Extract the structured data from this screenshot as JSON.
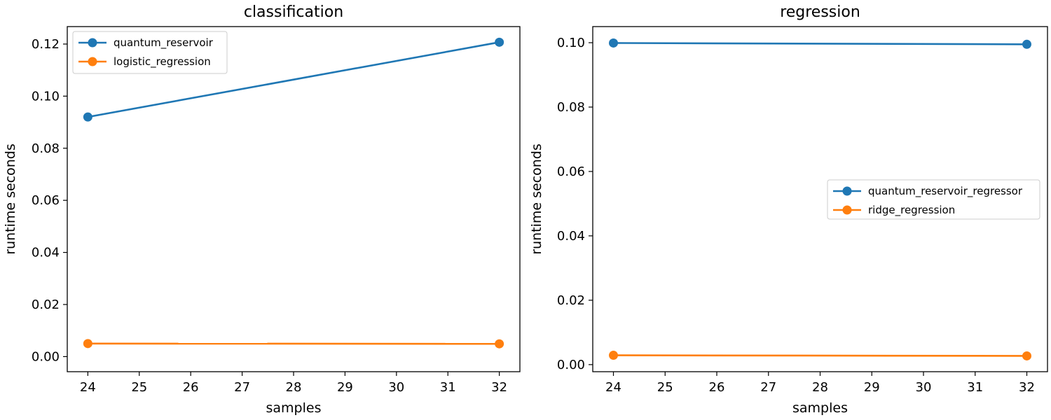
{
  "chart_data": [
    {
      "type": "line",
      "title": "classification",
      "xlabel": "samples",
      "ylabel": "runtime seconds",
      "xlim": [
        23.6,
        32.4
      ],
      "ylim": [
        -0.0058,
        0.1267
      ],
      "x_ticks": [
        24,
        25,
        26,
        27,
        28,
        29,
        30,
        31,
        32
      ],
      "y_ticks": [
        0.0,
        0.02,
        0.04,
        0.06,
        0.08,
        0.1,
        0.12
      ],
      "y_tick_labels": [
        "0.00",
        "0.02",
        "0.04",
        "0.06",
        "0.08",
        "0.10",
        "0.12"
      ],
      "x": [
        24,
        32
      ],
      "series": [
        {
          "name": "quantum_reservoir",
          "values": [
            0.092,
            0.1207
          ],
          "color": "#1f77b4"
        },
        {
          "name": "logistic_regression",
          "values": [
            0.005,
            0.0049
          ],
          "color": "#ff7f0e"
        }
      ],
      "legend": "upper-left",
      "grid": false
    },
    {
      "type": "line",
      "title": "regression",
      "xlabel": "samples",
      "ylabel": "runtime seconds",
      "xlim": [
        23.6,
        32.4
      ],
      "ylim": [
        -0.0022,
        0.105
      ],
      "x_ticks": [
        24,
        25,
        26,
        27,
        28,
        29,
        30,
        31,
        32
      ],
      "y_ticks": [
        0.0,
        0.02,
        0.04,
        0.06,
        0.08,
        0.1
      ],
      "y_tick_labels": [
        "0.00",
        "0.02",
        "0.04",
        "0.06",
        "0.08",
        "0.10"
      ],
      "x": [
        24,
        32
      ],
      "series": [
        {
          "name": "quantum_reservoir_regressor",
          "values": [
            0.0999,
            0.0995
          ],
          "color": "#1f77b4"
        },
        {
          "name": "ridge_regression",
          "values": [
            0.0029,
            0.0027
          ],
          "color": "#ff7f0e"
        }
      ],
      "legend": "center-right",
      "grid": false
    }
  ]
}
